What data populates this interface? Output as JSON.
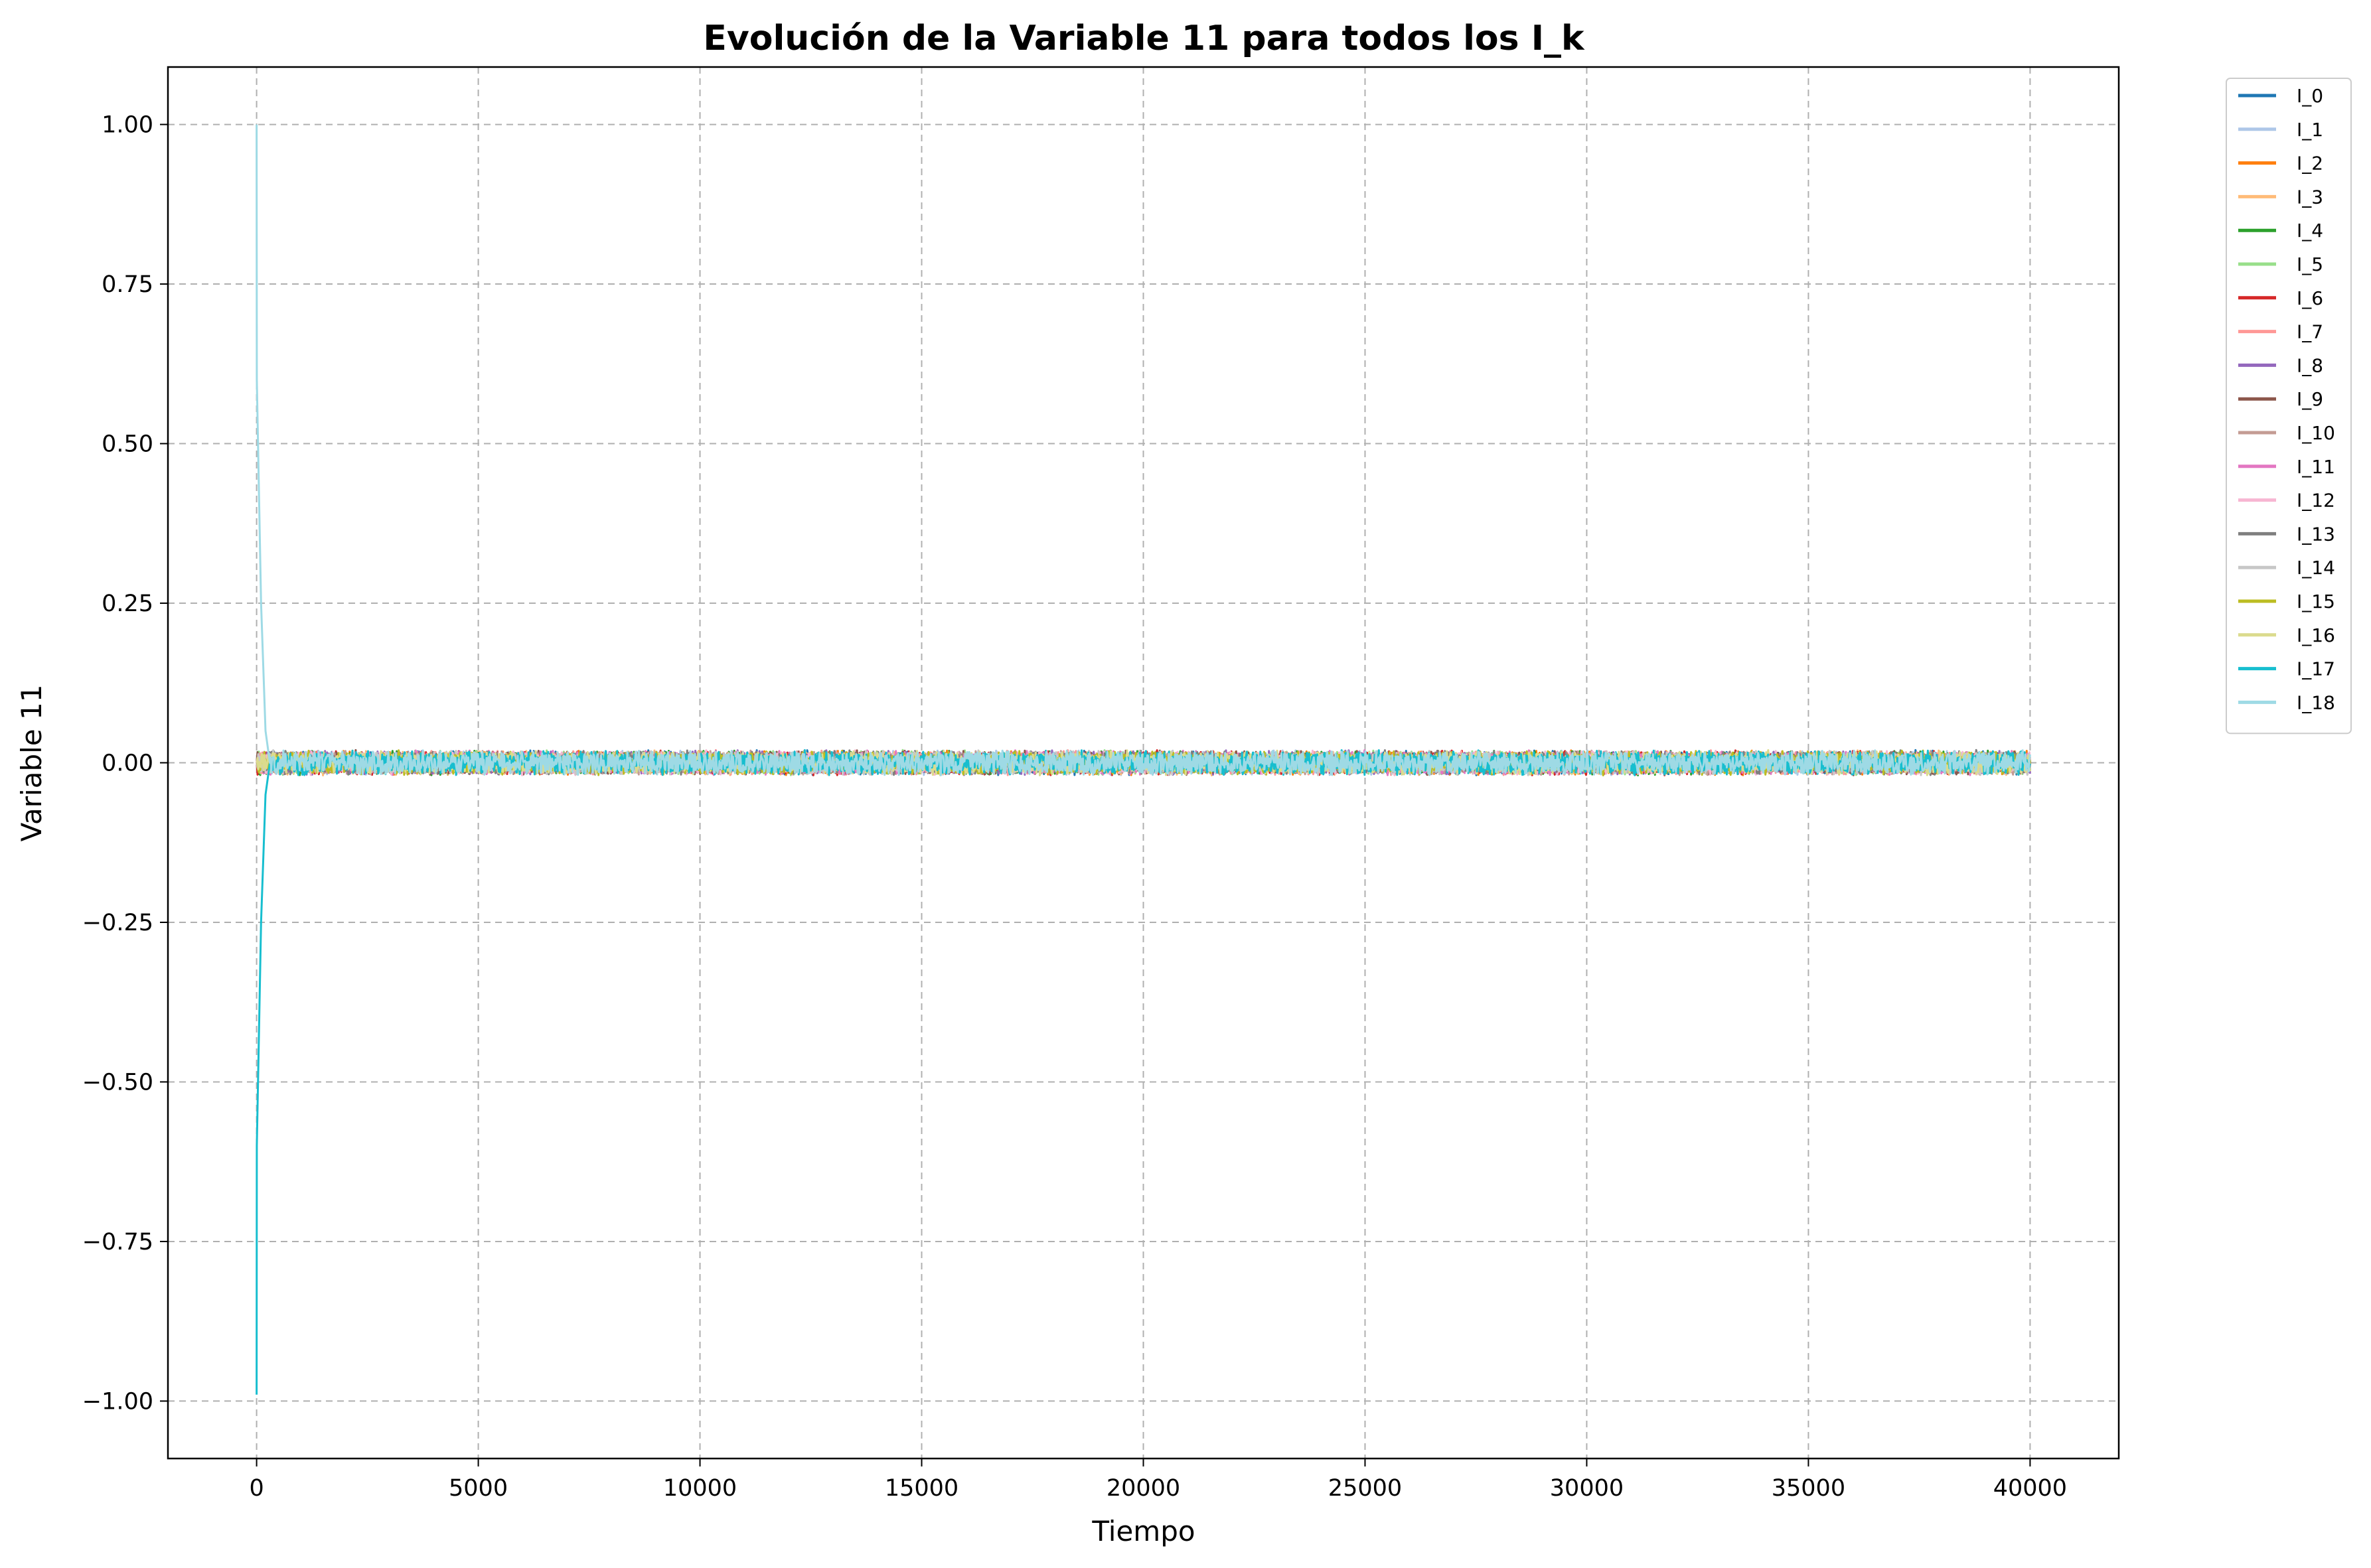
{
  "chart_data": {
    "type": "line",
    "title": "Evolución de la Variable 11 para todos los I_k",
    "xlabel": "Tiempo",
    "ylabel": "Variable 11",
    "xlim": [
      -2000,
      42000
    ],
    "ylim": [
      -1.09,
      1.09
    ],
    "xticks": [
      0,
      5000,
      10000,
      15000,
      20000,
      25000,
      30000,
      35000,
      40000
    ],
    "xtick_labels": [
      "0",
      "5000",
      "10000",
      "15000",
      "20000",
      "25000",
      "30000",
      "35000",
      "40000"
    ],
    "yticks": [
      1.0,
      0.75,
      0.5,
      0.25,
      0.0,
      -0.25,
      -0.5,
      -0.75,
      -1.0
    ],
    "ytick_labels": [
      "1.00",
      "0.75",
      "0.50",
      "0.25",
      "0.00",
      "−0.25",
      "−0.50",
      "−0.75",
      "−1.00"
    ],
    "grid": true,
    "legend_position": "outside-top-right",
    "noise_amplitude": 0.02,
    "series": [
      {
        "name": "I_0",
        "color": "#1f77b4",
        "x": [
          0,
          5,
          40000
        ],
        "y": [
          0.0,
          0.0,
          0.0
        ]
      },
      {
        "name": "I_1",
        "color": "#aec7e8",
        "x": [
          0,
          5,
          40000
        ],
        "y": [
          0.0,
          0.0,
          0.0
        ]
      },
      {
        "name": "I_2",
        "color": "#ff7f0e",
        "x": [
          0,
          5,
          40000
        ],
        "y": [
          0.0,
          0.0,
          0.0
        ]
      },
      {
        "name": "I_3",
        "color": "#ffbb78",
        "x": [
          0,
          5,
          40000
        ],
        "y": [
          0.0,
          0.0,
          0.0
        ]
      },
      {
        "name": "I_4",
        "color": "#2ca02c",
        "x": [
          0,
          5,
          40000
        ],
        "y": [
          0.0,
          0.0,
          0.0
        ]
      },
      {
        "name": "I_5",
        "color": "#98df8a",
        "x": [
          0,
          5,
          40000
        ],
        "y": [
          0.0,
          0.0,
          0.0
        ]
      },
      {
        "name": "I_6",
        "color": "#d62728",
        "x": [
          0,
          5,
          40000
        ],
        "y": [
          0.0,
          0.0,
          0.0
        ]
      },
      {
        "name": "I_7",
        "color": "#ff9896",
        "x": [
          0,
          5,
          40000
        ],
        "y": [
          0.0,
          0.0,
          0.0
        ]
      },
      {
        "name": "I_8",
        "color": "#9467bd",
        "x": [
          0,
          5,
          40000
        ],
        "y": [
          0.0,
          0.0,
          0.0
        ]
      },
      {
        "name": "I_9",
        "color": "#8c564b",
        "x": [
          0,
          5,
          40000
        ],
        "y": [
          0.0,
          0.0,
          0.0
        ]
      },
      {
        "name": "I_10",
        "color": "#c49c94",
        "x": [
          0,
          5,
          40000
        ],
        "y": [
          0.0,
          0.0,
          0.0
        ]
      },
      {
        "name": "I_11",
        "color": "#e377c2",
        "x": [
          0,
          5,
          40000
        ],
        "y": [
          0.0,
          0.0,
          0.0
        ]
      },
      {
        "name": "I_12",
        "color": "#f7b6d2",
        "x": [
          0,
          5,
          40000
        ],
        "y": [
          0.0,
          0.0,
          0.0
        ]
      },
      {
        "name": "I_13",
        "color": "#7f7f7f",
        "x": [
          0,
          5,
          40000
        ],
        "y": [
          0.0,
          0.0,
          0.0
        ]
      },
      {
        "name": "I_14",
        "color": "#c7c7c7",
        "x": [
          0,
          5,
          40000
        ],
        "y": [
          0.0,
          0.0,
          0.0
        ]
      },
      {
        "name": "I_15",
        "color": "#bcbd22",
        "x": [
          0,
          5,
          40000
        ],
        "y": [
          0.0,
          0.0,
          0.0
        ]
      },
      {
        "name": "I_16",
        "color": "#dbdb8d",
        "x": [
          0,
          5,
          40000
        ],
        "y": [
          0.0,
          0.0,
          0.0
        ]
      },
      {
        "name": "I_17",
        "color": "#17becf",
        "x": [
          0,
          5,
          100,
          200,
          300,
          40000
        ],
        "y": [
          -0.99,
          -0.6,
          -0.25,
          -0.05,
          0.0,
          0.0
        ]
      },
      {
        "name": "I_18",
        "color": "#9edae5",
        "x": [
          0,
          5,
          100,
          200,
          300,
          40000
        ],
        "y": [
          1.0,
          0.6,
          0.25,
          0.05,
          0.0,
          0.0
        ]
      }
    ]
  }
}
